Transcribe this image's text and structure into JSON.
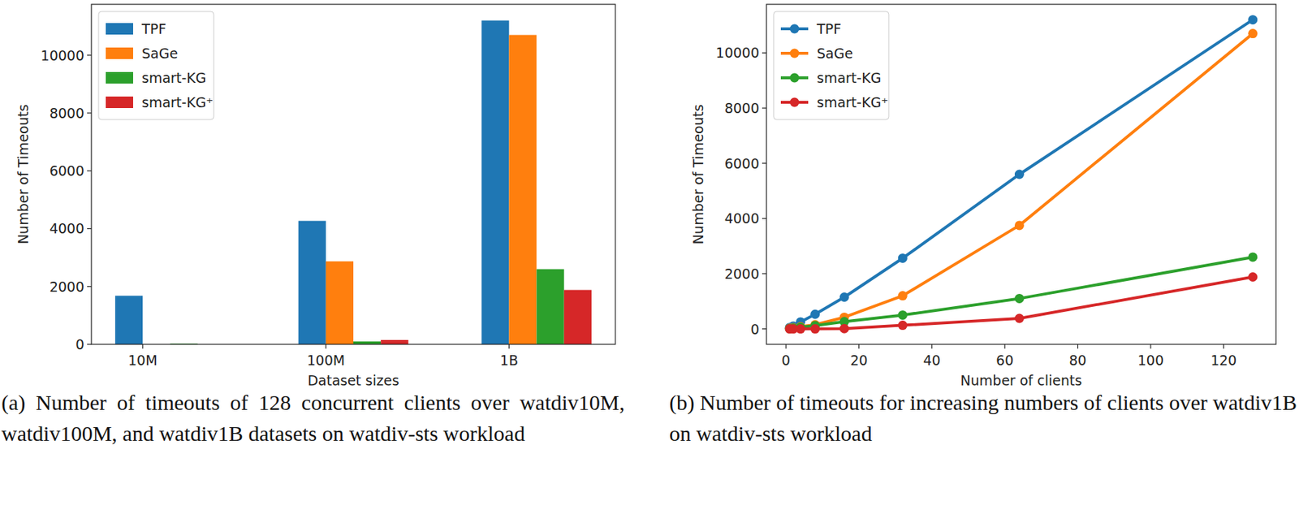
{
  "chart_data": [
    {
      "type": "bar",
      "title": "(a) Number of timeouts of 128 concurrent clients over watdiv10M, watdiv100M, and watdiv1B datasets on watdiv-sts workload",
      "x_label": "Dataset sizes",
      "y_label": "Number of Timeouts",
      "categories": [
        "10M",
        "100M",
        "1B"
      ],
      "series": [
        {
          "name": "TPF",
          "color": "#1f77b4",
          "values": [
            1680,
            4270,
            11200
          ]
        },
        {
          "name": "SaGe",
          "color": "#ff7f0e",
          "values": [
            0,
            2870,
            10700
          ]
        },
        {
          "name": "smart-KG",
          "color": "#2ca02c",
          "values": [
            25,
            100,
            2600
          ]
        },
        {
          "name": "smart-KG⁺",
          "color": "#d62728",
          "values": [
            0,
            150,
            1880
          ]
        }
      ],
      "ylim": [
        0,
        11760
      ],
      "yticks": [
        0,
        2000,
        4000,
        6000,
        8000,
        10000
      ],
      "legend": "upper left"
    },
    {
      "type": "line",
      "title": "(b) Number of timeouts for increasing numbers of clients over watdiv1B on watdiv-sts workload",
      "x_label": "Number of clients",
      "y_label": "Number of Timeouts",
      "x": [
        1,
        2,
        4,
        8,
        16,
        32,
        64,
        128
      ],
      "series": [
        {
          "name": "TPF",
          "color": "#1f77b4",
          "marker": "circle",
          "values": [
            50,
            100,
            250,
            530,
            1150,
            2560,
            5600,
            11200
          ]
        },
        {
          "name": "SaGe",
          "color": "#ff7f0e",
          "marker": "circle",
          "values": [
            20,
            40,
            80,
            150,
            420,
            1200,
            3750,
            10700
          ]
        },
        {
          "name": "smart-KG",
          "color": "#2ca02c",
          "marker": "circle",
          "values": [
            10,
            30,
            60,
            120,
            260,
            500,
            1100,
            2600
          ]
        },
        {
          "name": "smart-KG⁺",
          "color": "#d62728",
          "marker": "circle",
          "values": [
            0,
            0,
            0,
            0,
            10,
            130,
            380,
            1880
          ]
        }
      ],
      "xlim": [
        -5.35,
        134.35
      ],
      "xticks": [
        0,
        20,
        40,
        60,
        80,
        100,
        120
      ],
      "ylim": [
        -560,
        11760
      ],
      "yticks": [
        0,
        2000,
        4000,
        6000,
        8000,
        10000
      ],
      "legend": "upper left"
    }
  ]
}
